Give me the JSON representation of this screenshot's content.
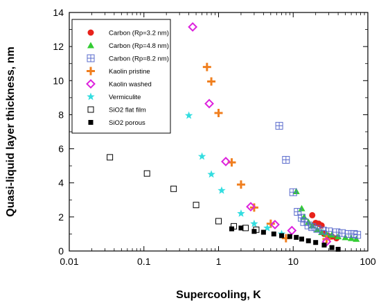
{
  "chart_data": {
    "type": "scatter",
    "title": "",
    "xlabel": "Supercooling, K",
    "ylabel": "Quasi-liquid layer thickness, nm",
    "xscale": "log",
    "xlim": [
      0.01,
      100
    ],
    "ylim": [
      0,
      14
    ],
    "x_ticks": [
      "0.01",
      "0.1",
      "1",
      "10",
      "100"
    ],
    "x_tick_values": [
      0.01,
      0.1,
      1,
      10,
      100
    ],
    "y_ticks": [
      "0",
      "2",
      "4",
      "6",
      "8",
      "10",
      "12",
      "14"
    ],
    "y_tick_values": [
      0,
      2,
      4,
      6,
      8,
      10,
      12,
      14
    ],
    "grid": false,
    "legend_position": "top-left",
    "series": [
      {
        "name": "Carbon (Rp=3.2 nm)",
        "marker": "circle",
        "color": "#e8221b",
        "x": [
          18,
          20,
          22,
          24,
          26,
          29,
          33,
          38
        ],
        "y": [
          2.1,
          1.65,
          1.6,
          1.5,
          1.0,
          0.9,
          0.85,
          0.75
        ]
      },
      {
        "name": "Carbon (Rp=4.8 nm)",
        "marker": "triangle",
        "color": "#33cc33",
        "x": [
          11,
          13,
          14,
          16,
          18,
          21,
          24,
          28,
          33,
          40,
          50,
          60,
          70
        ],
        "y": [
          3.5,
          2.5,
          2.0,
          1.7,
          1.5,
          1.25,
          1.1,
          1.0,
          0.95,
          0.85,
          0.8,
          0.75,
          0.7
        ]
      },
      {
        "name": "Carbon (Rp=8.2 nm)",
        "marker": "square-cross",
        "color": "#5a6bcc",
        "x": [
          6.5,
          8,
          10,
          11.5,
          13,
          14,
          16,
          18,
          21,
          25,
          30,
          38,
          45,
          55,
          65,
          72
        ],
        "y": [
          7.35,
          5.35,
          3.45,
          2.3,
          1.95,
          1.7,
          1.5,
          1.4,
          1.3,
          1.2,
          1.15,
          1.1,
          1.05,
          1.0,
          1.0,
          0.95
        ]
      },
      {
        "name": "Kaolin pristine",
        "marker": "plus",
        "color": "#f07f1f",
        "x": [
          0.7,
          0.8,
          1.0,
          1.5,
          2.0,
          3.0,
          5.0,
          8.0,
          28
        ],
        "y": [
          10.8,
          9.95,
          8.1,
          5.2,
          3.9,
          2.55,
          1.6,
          0.75,
          0.7
        ]
      },
      {
        "name": "Kaolin washed",
        "marker": "diamond",
        "color": "#dd22dd",
        "x": [
          0.45,
          0.75,
          1.25,
          2.7,
          5.7,
          9.6,
          28
        ],
        "y": [
          13.15,
          8.65,
          5.25,
          2.6,
          1.55,
          1.2,
          0.55
        ]
      },
      {
        "name": "Vermiculite",
        "marker": "star",
        "color": "#33dde0",
        "x": [
          0.4,
          0.6,
          0.8,
          1.1,
          2.0,
          3.0,
          4.5,
          7.0
        ],
        "y": [
          7.95,
          5.55,
          4.5,
          3.55,
          2.2,
          1.6,
          1.35,
          1.0
        ]
      },
      {
        "name": "SiO2 flat film",
        "marker": "open-square",
        "color": "#000000",
        "x": [
          0.035,
          0.11,
          0.25,
          0.5,
          1.0,
          1.6,
          2.3,
          3.2
        ],
        "y": [
          5.5,
          4.55,
          3.65,
          2.7,
          1.75,
          1.45,
          1.35,
          1.25
        ]
      },
      {
        "name": "SiO2 porous",
        "marker": "filled-square",
        "color": "#000000",
        "x": [
          1.5,
          2.0,
          3.0,
          4.0,
          5.5,
          7.0,
          9.0,
          11,
          13,
          16,
          20,
          26,
          33,
          40
        ],
        "y": [
          1.3,
          1.35,
          1.15,
          1.1,
          1.0,
          0.9,
          0.85,
          0.8,
          0.7,
          0.6,
          0.5,
          0.35,
          0.2,
          0.1
        ]
      }
    ]
  }
}
